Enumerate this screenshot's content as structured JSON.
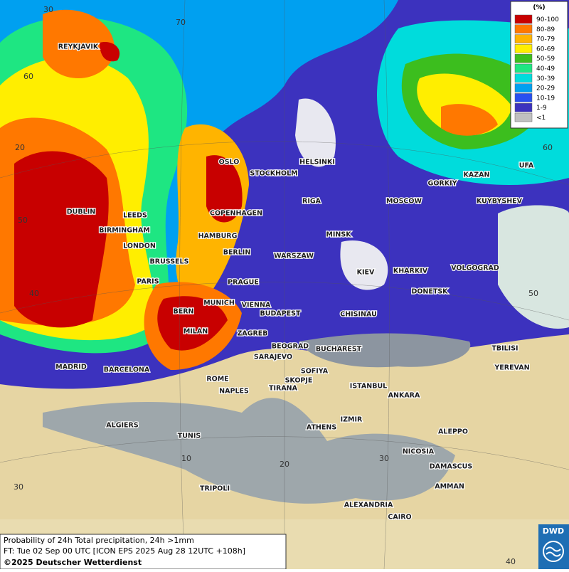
{
  "map": {
    "cities": [
      "REYKJAVIK",
      "OSLO",
      "STOCKHOLM",
      "HELSINKI",
      "DUBLIN",
      "LEEDS",
      "BIRMINGHAM",
      "LONDON",
      "BRUSSELS",
      "PARIS",
      "HAMBURG",
      "COPENHAGEN",
      "RIGA",
      "MINSK",
      "BERLIN",
      "WARSZAW",
      "PRAGUE",
      "KIEV",
      "KHARKIV",
      "VOLGOGRAD",
      "DONETSK",
      "MUNICH",
      "VIENNA",
      "BUDAPEST",
      "CHISINAU",
      "BERN",
      "MILAN",
      "ZAGREB",
      "BEOGRAD",
      "BUCHAREST",
      "TBILISI",
      "YEREVAN",
      "MADRID",
      "BARCELONA",
      "ROME",
      "NAPLES",
      "SARAJEVO",
      "SOFIYA",
      "SKOPJE",
      "TIRANA",
      "ISTANBUL",
      "ANKARA",
      "ALGIERS",
      "IZMIR",
      "ATHENS",
      "ALEPPO",
      "TUNIS",
      "NICOSIA",
      "DAMASCUS",
      "AMMAN",
      "TRIPOLI",
      "ALEXANDRIA",
      "CAIRO",
      "MOSCOW",
      "GORKIY",
      "KAZAN",
      "UFA",
      "KUYBYSHEV"
    ],
    "grid_labels": [
      30,
      70,
      60,
      20,
      50,
      40,
      60,
      50,
      30,
      20,
      30,
      10,
      40
    ]
  },
  "legend": {
    "title": "(%)",
    "entries": [
      {
        "label": "90-100",
        "color": "#c80000"
      },
      {
        "label": "80-89",
        "color": "#ff7800"
      },
      {
        "label": "70-79",
        "color": "#ffb400"
      },
      {
        "label": "60-69",
        "color": "#ffee00"
      },
      {
        "label": "50-59",
        "color": "#3cbe1e"
      },
      {
        "label": "40-49",
        "color": "#1ee682"
      },
      {
        "label": "30-39",
        "color": "#00dcdc"
      },
      {
        "label": "20-29",
        "color": "#00a0f0"
      },
      {
        "label": "10-19",
        "color": "#2850f0"
      },
      {
        "label": "1-9",
        "color": "#3c32be"
      },
      {
        "label": "<1",
        "color": "#c0c0c0"
      }
    ]
  },
  "caption": {
    "lines": [
      "Probability of 24h Total precipitation, 24h >1mm",
      "FT: Tue 02 Sep 00 UTC [ICON EPS 2025 Aug 28 12UTC +108h]"
    ],
    "copyright": "©2025 Deutscher Wetterdienst"
  },
  "logo": "DWD"
}
